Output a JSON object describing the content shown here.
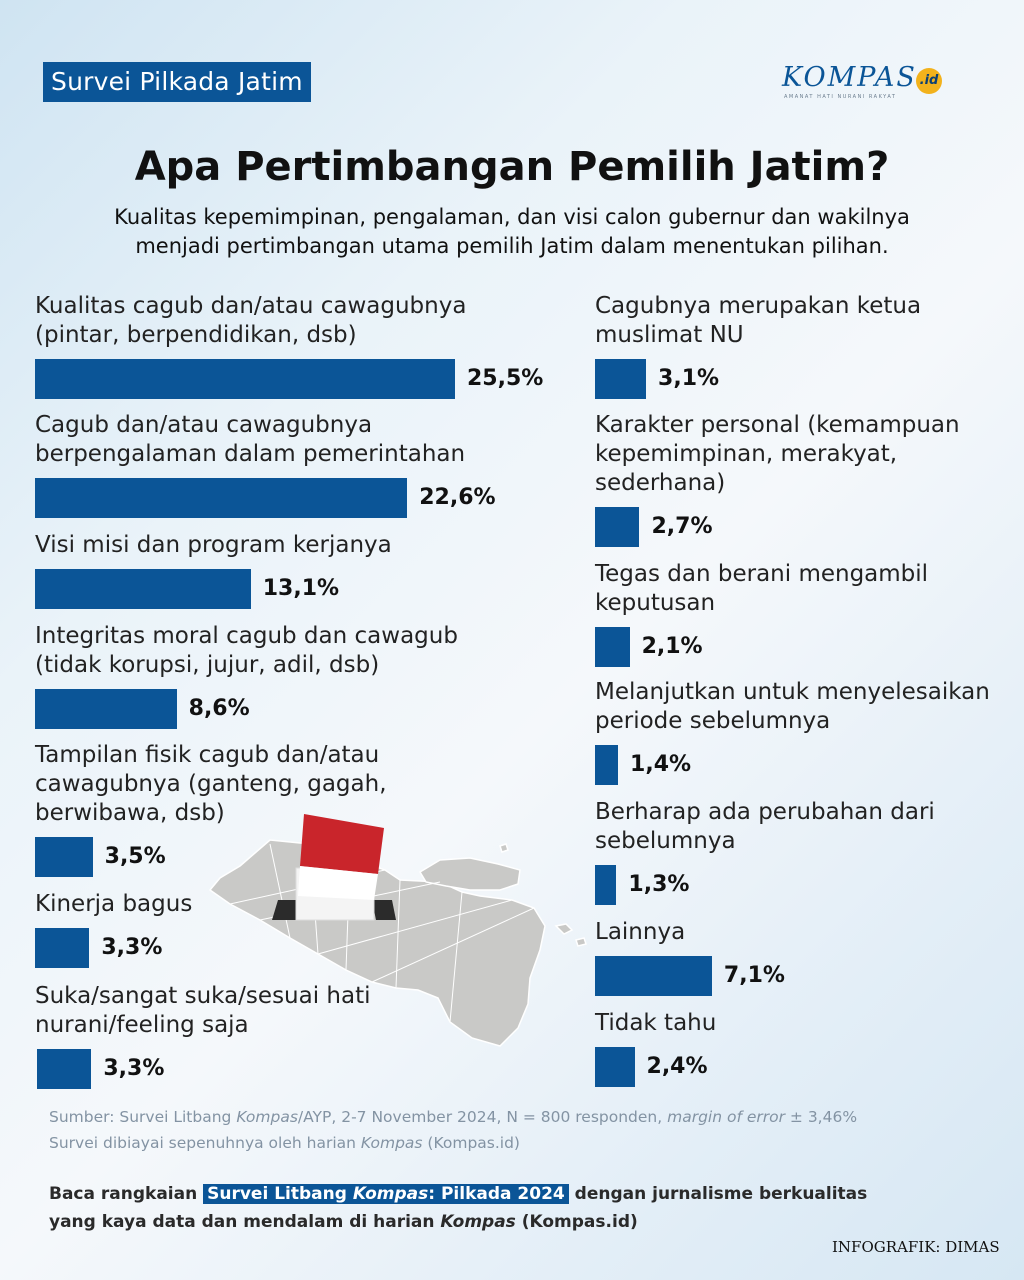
{
  "header": {
    "badge": "Survei Pilkada Jatim",
    "logo_text": "KOMPAS",
    "logo_suffix": ".id",
    "logo_tagline": "AMANAT HATI NURANI RAKYAT"
  },
  "title": "Apa Pertimbangan Pemilih Jatim?",
  "subtitle_line1": "Kualitas kepemimpinan, pengalaman, dan visi calon gubernur dan wakilnya",
  "subtitle_line2": "menjadi pertimbangan utama pemilih Jatim dalam menentukan pilihan.",
  "chart_data": {
    "type": "bar",
    "orientation": "horizontal",
    "unit": "%",
    "bar_color": "#0b5597",
    "categories": [
      [
        "Kualitas cagub dan/atau cawagubnya",
        "(pintar, berpendidikan, dsb)"
      ],
      [
        "Cagub dan/atau cawagubnya",
        "berpengalaman dalam pemerintahan"
      ],
      [
        "Visi misi dan program kerjanya"
      ],
      [
        "Integritas moral cagub dan cawagub",
        "(tidak korupsi, jujur, adil, dsb)"
      ],
      [
        "Tampilan fisik cagub dan/atau",
        "cawagubnya (ganteng, gagah,",
        "berwibawa, dsb)"
      ],
      [
        "Kinerja bagus"
      ],
      [
        "Suka/sangat suka/sesuai hati",
        "nurani/feeling saja"
      ],
      [
        "Cagubnya merupakan ketua",
        "muslimat NU"
      ],
      [
        "Karakter personal (kemampuan",
        "kepemimpinan, merakyat,",
        "sederhana)"
      ],
      [
        "Tegas dan berani mengambil",
        "keputusan"
      ],
      [
        "Melanjutkan untuk menyelesaikan",
        "periode sebelumnya"
      ],
      [
        "Berharap ada perubahan dari",
        "sebelumnya"
      ],
      [
        "Lainnya"
      ],
      [
        "Tidak tahu"
      ]
    ],
    "values": [
      25.5,
      22.6,
      13.1,
      8.6,
      3.5,
      3.3,
      3.3,
      3.1,
      2.7,
      2.1,
      1.4,
      1.3,
      7.1,
      2.4
    ],
    "value_labels": [
      "25,5%",
      "22,6%",
      "13,1%",
      "8,6%",
      "3,5%",
      "3,3%",
      "3,3%",
      "3,1%",
      "2,7%",
      "2,1%",
      "1,4%",
      "1,3%",
      "7,1%",
      "2,4%"
    ]
  },
  "source_line1_a": "Sumber: Survei Litbang ",
  "source_line1_b": "Kompas",
  "source_line1_c": "/AYP, 2-7 November 2024, N = 800 responden, ",
  "source_line1_d": "margin of error",
  "source_line1_e": " ± 3,46%",
  "source_line2_a": "Survei dibiayai sepenuhnya oleh harian ",
  "source_line2_b": "Kompas",
  "source_line2_c": " (Kompas.id)",
  "cta_line1_a": "Baca rangkaian ",
  "cta_line1_hl_a": "Survei Litbang ",
  "cta_line1_hl_b": "Kompas",
  "cta_line1_hl_c": ": Pilkada 2024",
  "cta_line1_b": " dengan jurnalisme berkualitas",
  "cta_line2_a": "yang kaya data dan mendalam di harian ",
  "cta_line2_b": "Kompas",
  "cta_line2_c": " (Kompas.id)",
  "credit": "INFOGRAFIK: DIMAS"
}
